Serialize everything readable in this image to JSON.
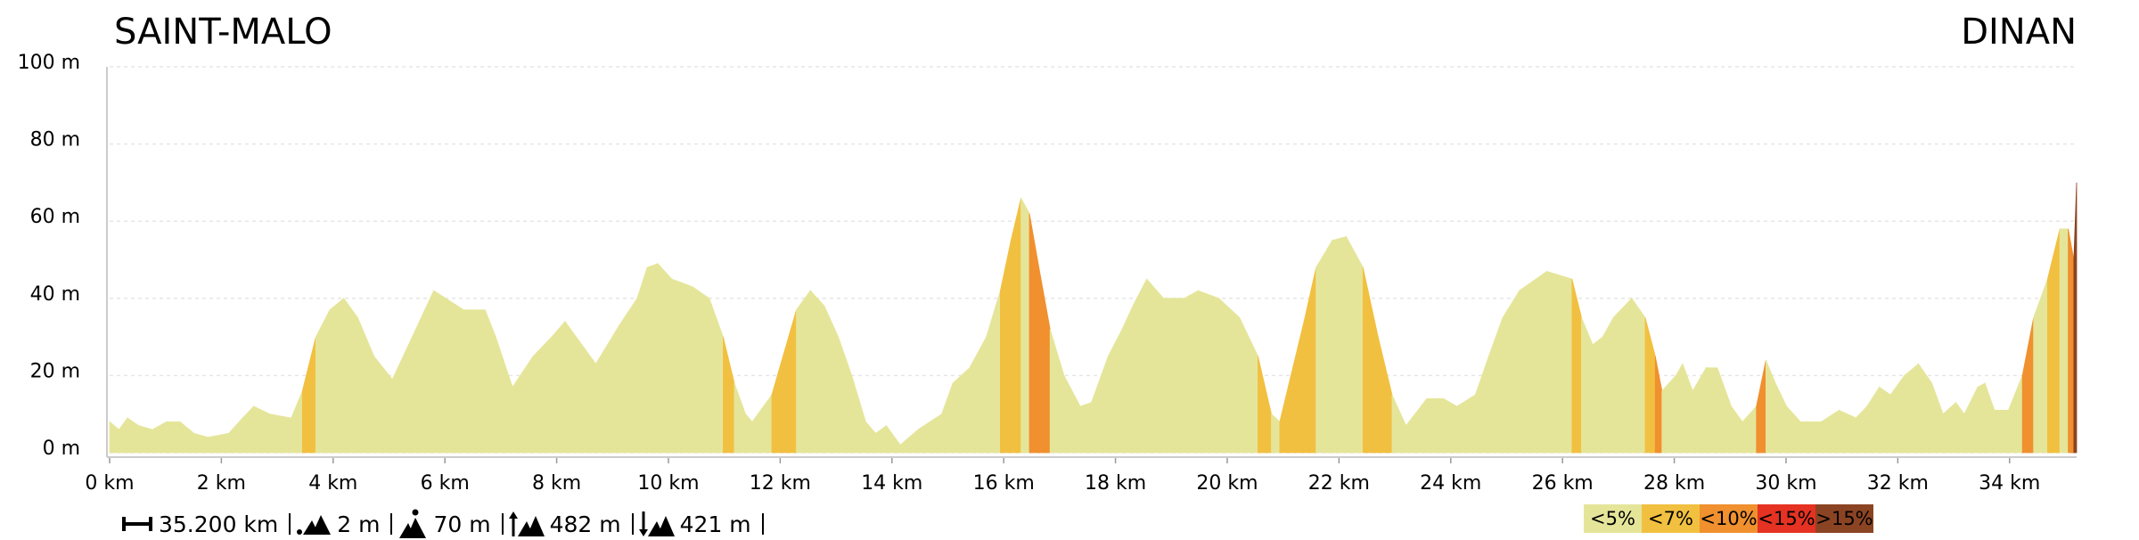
{
  "chart_data": {
    "type": "area",
    "title_left": "SAINT-MALO",
    "title_right": "DINAN",
    "x": [
      0,
      0.17,
      0.32,
      0.52,
      0.77,
      1.02,
      1.26,
      1.51,
      1.76,
      2.13,
      2.38,
      2.58,
      2.87,
      3.25,
      3.45,
      3.69,
      3.94,
      4.19,
      4.44,
      4.73,
      5.06,
      5.35,
      5.8,
      6.34,
      6.72,
      6.91,
      7.21,
      7.58,
      7.91,
      8.15,
      8.7,
      9.12,
      9.44,
      9.62,
      9.81,
      10.06,
      10.43,
      10.73,
      10.98,
      11.18,
      11.38,
      11.5,
      11.85,
      12.29,
      12.54,
      12.79,
      13.04,
      13.28,
      13.53,
      13.71,
      13.9,
      14.15,
      14.47,
      14.89,
      15.09,
      15.39,
      15.69,
      15.94,
      16.13,
      16.31,
      16.46,
      16.63,
      16.83,
      17.08,
      17.37,
      17.57,
      17.87,
      18.12,
      18.31,
      18.56,
      18.86,
      19.23,
      19.48,
      19.85,
      20.22,
      20.55,
      20.79,
      20.94,
      21.14,
      21.39,
      21.59,
      21.88,
      22.13,
      22.43,
      22.7,
      22.95,
      23.2,
      23.57,
      23.87,
      24.11,
      24.44,
      24.68,
      24.93,
      25.23,
      25.72,
      26.17,
      26.34,
      26.54,
      26.72,
      26.91,
      27.24,
      27.48,
      27.66,
      27.78,
      28.03,
      28.15,
      28.33,
      28.57,
      28.77,
      29.02,
      29.22,
      29.47,
      29.64,
      29.81,
      30.01,
      30.26,
      30.63,
      30.95,
      31.25,
      31.45,
      31.67,
      31.87,
      32.12,
      32.37,
      32.61,
      32.81,
      33.04,
      33.19,
      33.43,
      33.56,
      33.73,
      33.98,
      34.23,
      34.43,
      34.68,
      34.9,
      35.05,
      35.15,
      35.2
    ],
    "values": [
      8,
      6,
      9,
      7,
      6,
      8,
      8,
      5,
      4,
      5,
      9,
      12,
      10,
      9,
      16,
      30,
      37,
      40,
      35,
      25,
      19,
      28,
      42,
      37,
      37,
      30,
      17,
      25,
      30,
      34,
      23,
      33,
      40,
      48,
      49,
      45,
      43,
      40,
      30,
      18,
      10,
      8,
      15,
      37,
      42,
      38,
      30,
      20,
      8,
      5,
      7,
      2,
      6,
      10,
      18,
      22,
      30,
      42,
      55,
      66,
      62,
      48,
      32,
      20,
      12,
      13,
      25,
      32,
      38,
      45,
      40,
      40,
      42,
      40,
      35,
      25,
      10,
      8,
      20,
      35,
      48,
      55,
      56,
      48,
      30,
      15,
      7,
      14,
      14,
      12,
      15,
      25,
      35,
      42,
      47,
      45,
      35,
      28,
      30,
      35,
      40,
      35,
      25,
      16,
      20,
      23,
      16,
      22,
      22,
      12,
      8,
      12,
      24,
      18,
      12,
      8,
      8,
      11,
      9,
      12,
      17,
      15,
      20,
      23,
      18,
      10,
      13,
      10,
      17,
      18,
      11,
      11,
      20,
      35,
      45,
      58,
      58,
      50,
      70
    ],
    "xlim": [
      0,
      35.2
    ],
    "xticks": [
      {
        "value": 0,
        "label": "0 km"
      },
      {
        "value": 2,
        "label": "2 km"
      },
      {
        "value": 4,
        "label": "4 km"
      },
      {
        "value": 6,
        "label": "6 km"
      },
      {
        "value": 8,
        "label": "8 km"
      },
      {
        "value": 10,
        "label": "10 km"
      },
      {
        "value": 12,
        "label": "12 km"
      },
      {
        "value": 14,
        "label": "14 km"
      },
      {
        "value": 16,
        "label": "16 km"
      },
      {
        "value": 18,
        "label": "18 km"
      },
      {
        "value": 20,
        "label": "20 km"
      },
      {
        "value": 22,
        "label": "22 km"
      },
      {
        "value": 24,
        "label": "24 km"
      },
      {
        "value": 26,
        "label": "26 km"
      },
      {
        "value": 28,
        "label": "28 km"
      },
      {
        "value": 30,
        "label": "30 km"
      },
      {
        "value": 32,
        "label": "32 km"
      },
      {
        "value": 34,
        "label": "34 km"
      }
    ],
    "ylim": [
      0,
      100
    ],
    "yticks": [
      {
        "value": 0,
        "label": "0 m"
      },
      {
        "value": 20,
        "label": "20 m"
      },
      {
        "value": 40,
        "label": "40 m"
      },
      {
        "value": 60,
        "label": "60 m"
      },
      {
        "value": 80,
        "label": "80 m"
      },
      {
        "value": 100,
        "label": "100 m"
      }
    ],
    "grid": true,
    "slope_classes": [
      {
        "label": "<5%",
        "max": 5,
        "color": "#e5e59a"
      },
      {
        "label": "<7%",
        "max": 7,
        "color": "#f2c040"
      },
      {
        "label": "<10%",
        "max": 10,
        "color": "#f0902e"
      },
      {
        "label": "<15%",
        "max": 15,
        "color": "#e53222"
      },
      {
        "label": ">15%",
        "color": "#8b4423"
      }
    ],
    "stats": [
      "35.200 km",
      "2 m",
      "70 m",
      "482 m",
      "421 m"
    ]
  }
}
